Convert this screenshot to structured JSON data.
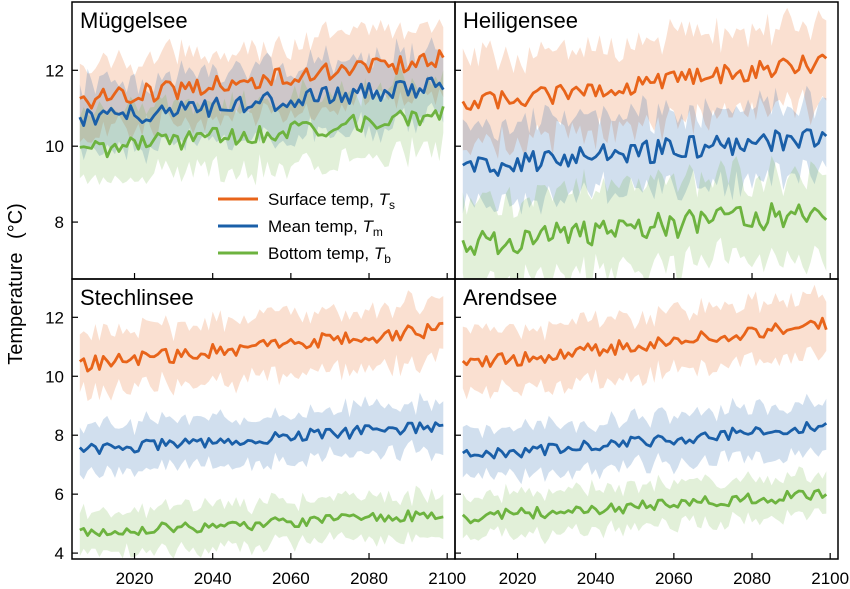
{
  "figure": {
    "ylabel": "Temperature",
    "ylabel_unit": "(°C)",
    "legend": [
      {
        "label": "Surface temp, ",
        "sym": "T",
        "sub": "s",
        "color": "#e8641a"
      },
      {
        "label": "Mean temp, ",
        "sym": "T",
        "sub": "m",
        "color": "#1a5fa8"
      },
      {
        "label": "Bottom temp, ",
        "sym": "T",
        "sub": "b",
        "color": "#6db33f"
      }
    ],
    "xticks": [
      "2020",
      "2040",
      "2060",
      "2080",
      "2100"
    ],
    "yticks_top": [
      "8",
      "10",
      "12"
    ],
    "yticks_bottom": [
      "4",
      "6",
      "8",
      "10",
      "12"
    ]
  },
  "chart_data": [
    {
      "type": "line",
      "title": "Müggelsee",
      "xlim": [
        2004,
        2102
      ],
      "ylim": [
        6.5,
        13.8
      ],
      "grid": false,
      "legend_placement": "lower-right",
      "x_range": [
        2006,
        2099
      ],
      "series": [
        {
          "name": "Surface temp, Ts",
          "color": "#e8641a",
          "start": 11.2,
          "end": 12.3,
          "noise": 0.25,
          "band": 0.9
        },
        {
          "name": "Mean temp, Tm",
          "color": "#1a5fa8",
          "start": 10.7,
          "end": 11.6,
          "noise": 0.25,
          "band": 0.9
        },
        {
          "name": "Bottom temp, Tb",
          "color": "#6db33f",
          "start": 9.9,
          "end": 10.8,
          "noise": 0.25,
          "band": 0.9
        }
      ]
    },
    {
      "type": "line",
      "title": "Heiligensee",
      "xlim": [
        2004,
        2102
      ],
      "ylim": [
        6.5,
        13.8
      ],
      "grid": false,
      "x_range": [
        2006,
        2099
      ],
      "series": [
        {
          "name": "Surface temp, Ts",
          "color": "#e8641a",
          "start": 11.1,
          "end": 12.2,
          "noise": 0.25,
          "band": 1.1
        },
        {
          "name": "Mean temp, Tm",
          "color": "#1a5fa8",
          "start": 9.4,
          "end": 10.3,
          "noise": 0.3,
          "band": 1.0
        },
        {
          "name": "Bottom temp, Tb",
          "color": "#6db33f",
          "start": 7.4,
          "end": 8.3,
          "noise": 0.35,
          "band": 1.1
        }
      ]
    },
    {
      "type": "line",
      "title": "Stechlinsee",
      "xlim": [
        2004,
        2102
      ],
      "ylim": [
        3.8,
        13.3
      ],
      "grid": false,
      "x_range": [
        2006,
        2099
      ],
      "series": [
        {
          "name": "Surface temp, Ts",
          "color": "#e8641a",
          "start": 10.4,
          "end": 11.6,
          "noise": 0.25,
          "band": 1.0
        },
        {
          "name": "Mean temp, Tm",
          "color": "#1a5fa8",
          "start": 7.5,
          "end": 8.3,
          "noise": 0.2,
          "band": 0.8
        },
        {
          "name": "Bottom temp, Tb",
          "color": "#6db33f",
          "start": 4.7,
          "end": 5.3,
          "noise": 0.2,
          "band": 0.7
        }
      ]
    },
    {
      "type": "line",
      "title": "Arendsee",
      "xlim": [
        2004,
        2102
      ],
      "ylim": [
        3.8,
        13.3
      ],
      "grid": false,
      "x_range": [
        2006,
        2099
      ],
      "series": [
        {
          "name": "Surface temp, Ts",
          "color": "#e8641a",
          "start": 10.4,
          "end": 11.8,
          "noise": 0.25,
          "band": 1.0
        },
        {
          "name": "Mean temp, Tm",
          "color": "#1a5fa8",
          "start": 7.3,
          "end": 8.3,
          "noise": 0.2,
          "band": 0.8
        },
        {
          "name": "Bottom temp, Tb",
          "color": "#6db33f",
          "start": 5.2,
          "end": 6.0,
          "noise": 0.2,
          "band": 0.7
        }
      ]
    }
  ]
}
